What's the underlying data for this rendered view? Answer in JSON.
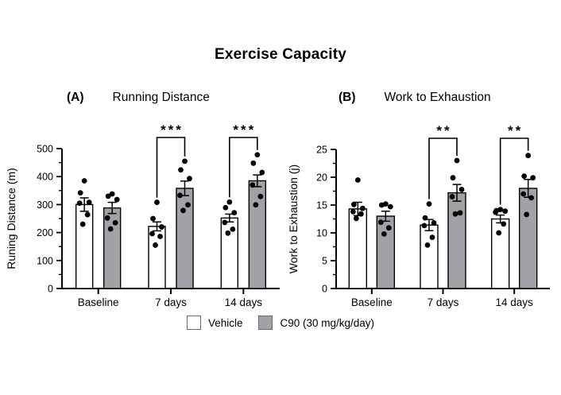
{
  "title": "Exercise Capacity",
  "legend": {
    "items": [
      {
        "label": "Vehicle",
        "fill": "#FFFFFF"
      },
      {
        "label": "C90 (30 mg/kg/day)",
        "fill": "#A0A2A6"
      }
    ],
    "position": "bottom"
  },
  "colors": {
    "axis": "#000000",
    "bar_stroke": "#000000",
    "point": "#000000",
    "vehicle_fill": "#FFFFFF",
    "c90_fill": "#A0A2A6"
  },
  "chart_data": [
    {
      "type": "bar",
      "panel_label": "(A)",
      "title": "Running Distance",
      "xlabel": "",
      "ylabel": "Runing Distance (m)",
      "categories": [
        "Baseline",
        "7 days",
        "14 days"
      ],
      "ylim": [
        0,
        500
      ],
      "yticks": [
        0,
        100,
        200,
        300,
        400,
        500
      ],
      "minor_tick_step": 50,
      "grid": false,
      "series": [
        {
          "name": "Vehicle",
          "fill": "#FFFFFF",
          "means": [
            300,
            222,
            252
          ],
          "sem": [
            24,
            16,
            14
          ],
          "points": [
            [
              385,
              342,
              308,
              305,
              264,
              230
            ],
            [
              308,
              250,
              220,
              196,
              186,
              155
            ],
            [
              309,
              289,
              271,
              236,
              212,
              198
            ]
          ]
        },
        {
          "name": "C90 (30 mg/kg/day)",
          "fill": "#A0A2A6",
          "means": [
            288,
            358,
            385
          ],
          "sem": [
            20,
            26,
            21
          ],
          "points": [
            [
              338,
              330,
              318,
              252,
              235,
              213
            ],
            [
              455,
              424,
              393,
              333,
              299,
              279
            ],
            [
              478,
              448,
              415,
              370,
              329,
              299
            ]
          ]
        }
      ],
      "significance": [
        {
          "category_index": 1,
          "label": "***"
        },
        {
          "category_index": 2,
          "label": "***"
        }
      ]
    },
    {
      "type": "bar",
      "panel_label": "(B)",
      "title": "Work to Exhaustion",
      "xlabel": "",
      "ylabel": "Work to Exhaustion (j)",
      "categories": [
        "Baseline",
        "7 days",
        "14 days"
      ],
      "ylim": [
        0,
        25
      ],
      "yticks": [
        0,
        5,
        10,
        15,
        20,
        25
      ],
      "minor_tick_step": 2.5,
      "grid": false,
      "series": [
        {
          "name": "Vehicle",
          "fill": "#FFFFFF",
          "means": [
            14.3,
            11.4,
            12.5
          ],
          "sem": [
            1.2,
            1.0,
            0.7
          ],
          "points": [
            [
              19.5,
              15.1,
              14.4,
              13.8,
              13.4,
              12.6
            ],
            [
              15.2,
              12.7,
              11.8,
              11.3,
              9.2,
              7.8
            ],
            [
              14.2,
              14.0,
              13.9,
              13.7,
              11.6,
              10.0
            ]
          ]
        },
        {
          "name": "C90 (30 mg/kg/day)",
          "fill": "#A0A2A6",
          "means": [
            13.0,
            17.2,
            18.0
          ],
          "sem": [
            0.9,
            1.5,
            1.6
          ],
          "points": [
            [
              15.2,
              15.0,
              14.7,
              11.9,
              10.9,
              9.8
            ],
            [
              23.0,
              19.9,
              17.8,
              16.5,
              13.6,
              13.4
            ],
            [
              23.9,
              20.2,
              19.9,
              17.0,
              16.3,
              13.3
            ]
          ]
        }
      ],
      "significance": [
        {
          "category_index": 1,
          "label": "**"
        },
        {
          "category_index": 2,
          "label": "**"
        }
      ]
    }
  ]
}
